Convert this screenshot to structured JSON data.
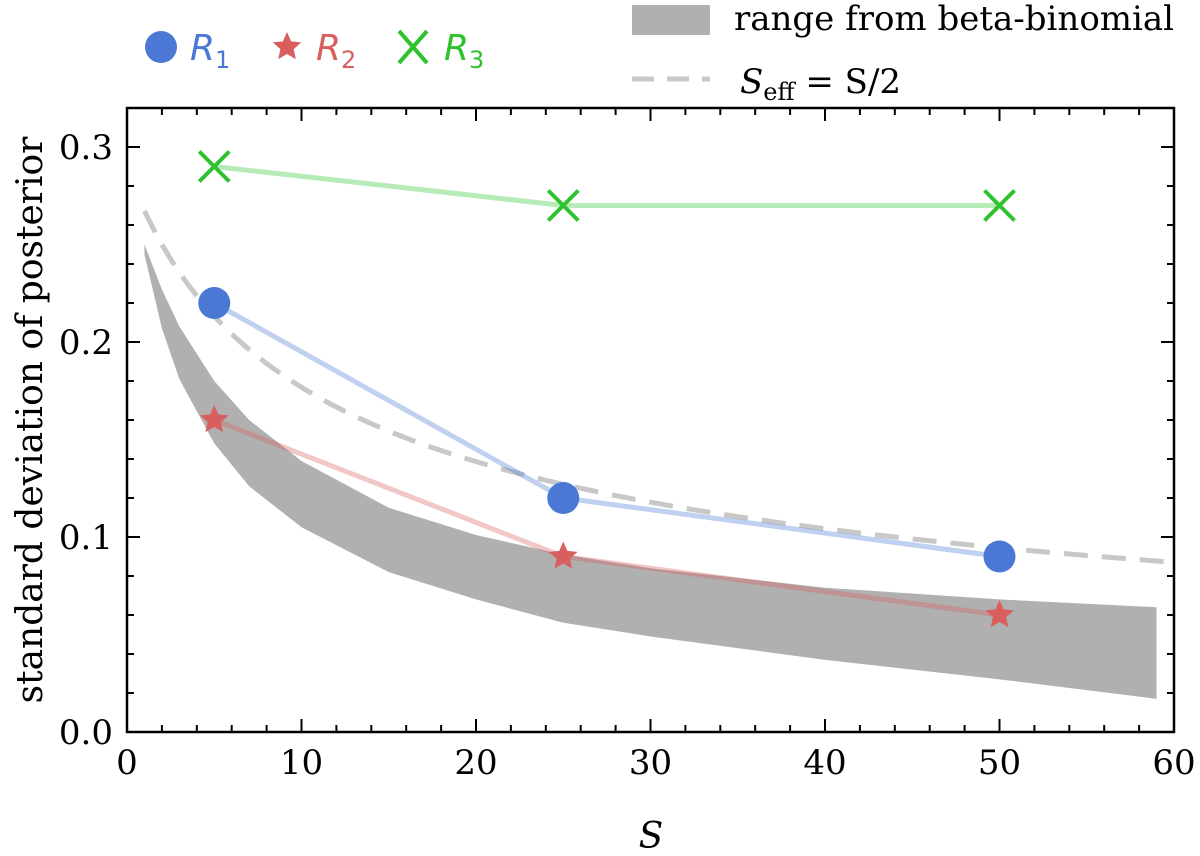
{
  "chart_data": {
    "type": "line",
    "xlabel": "S",
    "ylabel": "standard deviation of posterior",
    "xlim": [
      0,
      60
    ],
    "ylim": [
      0.0,
      0.32
    ],
    "xticks": [
      0,
      10,
      20,
      30,
      40,
      50,
      60
    ],
    "yticks": [
      0.0,
      0.1,
      0.2,
      0.3
    ],
    "xtick_labels": [
      "0",
      "10",
      "20",
      "30",
      "40",
      "50",
      "60"
    ],
    "ytick_labels": [
      "0.0",
      "0.1",
      "0.2",
      "0.3"
    ],
    "series": [
      {
        "name": "R1",
        "label_main": "R",
        "label_sub": "1",
        "marker": "circle",
        "color": "#4a78d4",
        "x": [
          5,
          25,
          50
        ],
        "values": [
          0.22,
          0.12,
          0.09
        ]
      },
      {
        "name": "R2",
        "label_main": "R",
        "label_sub": "2",
        "marker": "star",
        "color": "#d95f5f",
        "x": [
          5,
          25,
          50
        ],
        "values": [
          0.16,
          0.09,
          0.06
        ]
      },
      {
        "name": "R3",
        "label_main": "R",
        "label_sub": "3",
        "marker": "x",
        "color": "#2ec22e",
        "x": [
          5,
          25,
          50
        ],
        "values": [
          0.29,
          0.27,
          0.27
        ]
      }
    ],
    "band": {
      "label": "range from beta-binomial",
      "color": "#b0b0b0",
      "x": [
        1,
        2,
        3,
        5,
        7,
        10,
        15,
        20,
        25,
        30,
        40,
        50,
        59
      ],
      "upper": [
        0.25,
        0.227,
        0.208,
        0.18,
        0.16,
        0.139,
        0.115,
        0.101,
        0.091,
        0.084,
        0.074,
        0.068,
        0.064
      ],
      "lower": [
        0.245,
        0.207,
        0.181,
        0.148,
        0.126,
        0.105,
        0.082,
        0.068,
        0.056,
        0.049,
        0.037,
        0.027,
        0.017
      ]
    },
    "reference": {
      "label_main": "S",
      "label_sub": "eff",
      "label_rest": " = S/2",
      "color": "#c8c8c8",
      "style": "dashed",
      "x_start": 1,
      "x_end": 60
    },
    "legend_position": "top"
  }
}
